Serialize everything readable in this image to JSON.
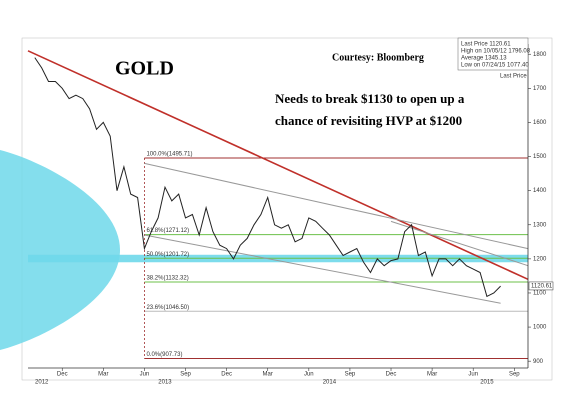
{
  "chart_data": {
    "type": "line",
    "title": "GOLD",
    "source": "Courtesy: Bloomberg",
    "annotation": [
      "Needs to break $1130 to open up a",
      "chance of revisiting HVP at $1200"
    ],
    "xlim": [
      -0.5,
      36
    ],
    "ylim": [
      880,
      1830
    ],
    "yticks": [
      900,
      1000,
      1100,
      1200,
      1300,
      1400,
      1500,
      1600,
      1700,
      1800
    ],
    "xticks": [
      {
        "value": 2,
        "label": "Dec"
      },
      {
        "value": 5,
        "label": "Mar"
      },
      {
        "value": 8,
        "label": "Jun"
      },
      {
        "value": 11,
        "label": "Sep"
      },
      {
        "value": 14,
        "label": "Dec"
      },
      {
        "value": 17,
        "label": "Mar"
      },
      {
        "value": 20,
        "label": "Jun"
      },
      {
        "value": 23,
        "label": "Sep"
      },
      {
        "value": 26,
        "label": "Dec"
      },
      {
        "value": 29,
        "label": "Mar"
      },
      {
        "value": 32,
        "label": "Jun"
      },
      {
        "value": 35,
        "label": "Sep"
      }
    ],
    "year_ticks": [
      {
        "value": 0.5,
        "label": "2012"
      },
      {
        "value": 9.5,
        "label": "2013"
      },
      {
        "value": 21.5,
        "label": "2014"
      },
      {
        "value": 33,
        "label": "2015"
      }
    ],
    "legend": [
      "Last Price 1120.61",
      "High on 10/05/12 1796.08",
      "Average 1345.13",
      "Low on 07/24/15 1077.40"
    ],
    "last_price": {
      "value": 1120.61,
      "label": "1120.61"
    },
    "hvp_band": [
      1190,
      1212
    ],
    "fib_levels": [
      {
        "value": 1495.71,
        "label": "100.0%(1495.71)",
        "color": "#a03030"
      },
      {
        "value": 1271.12,
        "label": "61.8%(1271.12)",
        "color": "#6cc04a"
      },
      {
        "value": 1201.72,
        "label": "50.0%(1201.72)",
        "color": "#6cc04a"
      },
      {
        "value": 1132.32,
        "label": "38.2%(1132.32)",
        "color": "#6cc04a"
      },
      {
        "value": 1046.5,
        "label": "23.6%(1046.50)",
        "color": "#bbbbbb"
      },
      {
        "value": 907.73,
        "label": "0.0%(907.73)",
        "color": "#a03030"
      }
    ],
    "trendlines": [
      {
        "name": "resistance",
        "color": "#c0302a",
        "x": [
          -0.5,
          36
        ],
        "y": [
          1810,
          1140
        ]
      },
      {
        "name": "channel-top",
        "color": "#999999",
        "x": [
          8,
          36
        ],
        "y": [
          1480,
          1230
        ]
      },
      {
        "name": "channel-bottom",
        "color": "#999999",
        "x": [
          8,
          34
        ],
        "y": [
          1270,
          1070
        ]
      },
      {
        "name": "mid",
        "color": "#999999",
        "x": [
          26,
          36
        ],
        "y": [
          1310,
          1180
        ]
      }
    ],
    "series": [
      {
        "name": "Last Price",
        "color": "#222222",
        "x": [
          0,
          0.5,
          1,
          1.5,
          2,
          2.5,
          3,
          3.5,
          4,
          4.5,
          5,
          5.5,
          6,
          6.5,
          7,
          7.5,
          8,
          8.5,
          9,
          9.5,
          10,
          10.5,
          11,
          11.5,
          12,
          12.5,
          13,
          13.5,
          14,
          14.5,
          15,
          15.5,
          16,
          16.5,
          17,
          17.5,
          18,
          18.5,
          19,
          19.5,
          20,
          20.5,
          21,
          21.5,
          22,
          22.5,
          23,
          23.5,
          24,
          24.5,
          25,
          25.5,
          26,
          26.5,
          27,
          27.5,
          28,
          28.5,
          29,
          29.5,
          30,
          30.5,
          31,
          31.5,
          32,
          32.5,
          33,
          33.5,
          34
        ],
        "values": [
          1790,
          1760,
          1720,
          1720,
          1700,
          1670,
          1680,
          1670,
          1640,
          1580,
          1600,
          1560,
          1400,
          1470,
          1390,
          1380,
          1230,
          1280,
          1320,
          1410,
          1370,
          1390,
          1320,
          1330,
          1270,
          1350,
          1280,
          1240,
          1230,
          1200,
          1240,
          1260,
          1300,
          1330,
          1380,
          1300,
          1290,
          1300,
          1250,
          1260,
          1320,
          1310,
          1290,
          1270,
          1240,
          1210,
          1220,
          1230,
          1190,
          1160,
          1200,
          1180,
          1195,
          1200,
          1280,
          1300,
          1210,
          1220,
          1150,
          1200,
          1200,
          1180,
          1200,
          1180,
          1170,
          1160,
          1090,
          1100,
          1120
        ]
      }
    ]
  }
}
